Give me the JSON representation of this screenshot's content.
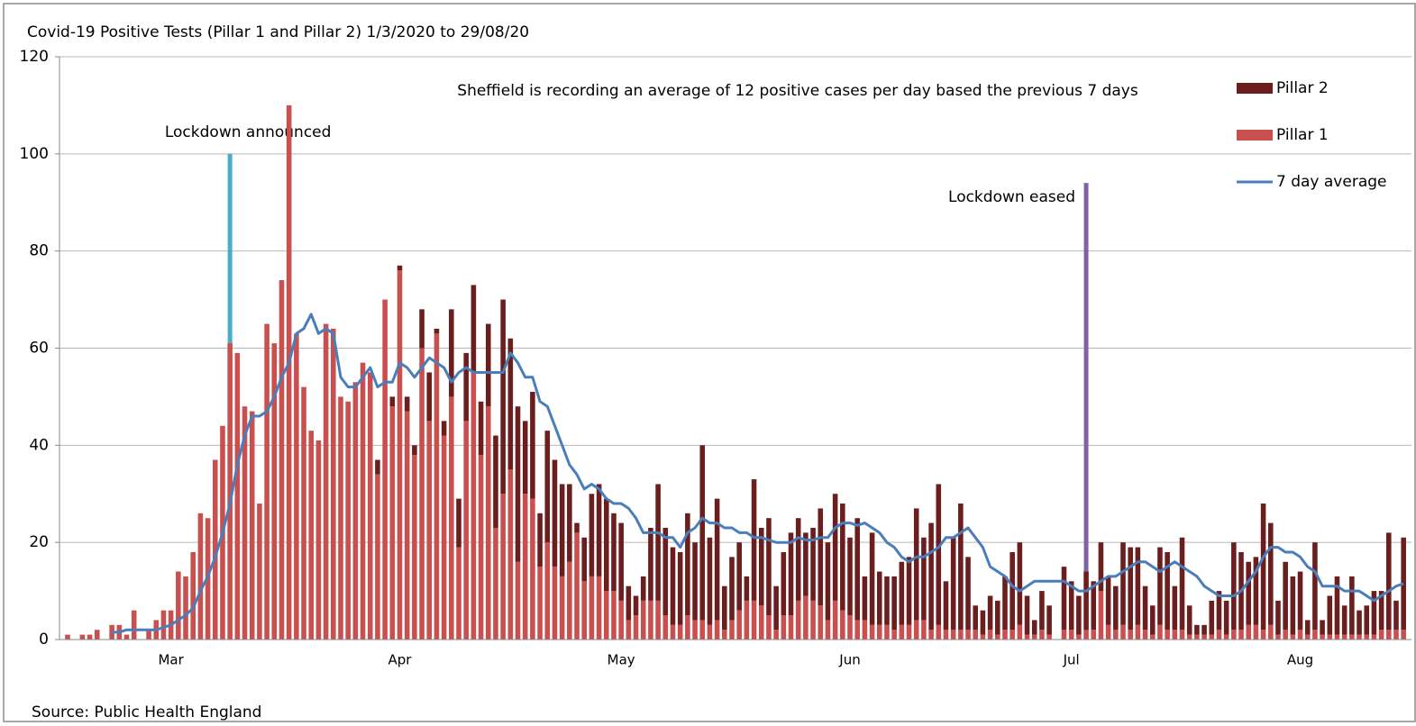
{
  "chart_data": {
    "type": "bar",
    "title": "Covid-19 Positive Tests (Pillar 1 and Pillar 2) 1/3/2020 to 29/08/20",
    "note": "Sheffield is recording an average of 12 positive cases per day based the previous 7 days",
    "source": "Source: Public Health England",
    "ylim": [
      0,
      120
    ],
    "yticks": [
      0,
      20,
      40,
      60,
      80,
      100,
      120
    ],
    "grid": true,
    "legend": "top-right",
    "categories": [
      null,
      null,
      null,
      null,
      null,
      null,
      null,
      null,
      null,
      null,
      null,
      null,
      null,
      null,
      "Mar",
      null,
      null,
      null,
      null,
      null,
      null,
      null,
      null,
      null,
      null,
      null,
      null,
      null,
      null,
      null,
      null,
      null,
      null,
      null,
      null,
      null,
      null,
      null,
      null,
      null,
      null,
      null,
      null,
      null,
      null,
      "Apr",
      null,
      null,
      null,
      null,
      null,
      null,
      null,
      null,
      null,
      null,
      null,
      null,
      null,
      null,
      null,
      null,
      null,
      null,
      null,
      null,
      null,
      null,
      null,
      null,
      null,
      null,
      null,
      null,
      null,
      "May",
      null,
      null,
      null,
      null,
      null,
      null,
      null,
      null,
      null,
      null,
      null,
      null,
      null,
      null,
      null,
      null,
      null,
      null,
      null,
      null,
      null,
      null,
      null,
      null,
      null,
      null,
      null,
      null,
      null,
      null,
      "Jun",
      null,
      null,
      null,
      null,
      null,
      null,
      null,
      null,
      null,
      null,
      null,
      null,
      null,
      null,
      null,
      null,
      null,
      null,
      null,
      null,
      null,
      null,
      null,
      null,
      null,
      null,
      null,
      null,
      null,
      "Jul",
      null,
      null,
      null,
      null,
      null,
      null,
      null,
      null,
      null,
      null,
      null,
      null,
      null,
      null,
      null,
      null,
      null,
      null,
      null,
      null,
      null,
      null,
      null,
      null,
      null,
      null,
      null,
      null,
      null,
      null,
      "Aug",
      null,
      null,
      null,
      null,
      null,
      null,
      null,
      null,
      null,
      null,
      null,
      null,
      null,
      null
    ],
    "series": [
      {
        "name": "Pillar 2",
        "type": "bar",
        "color": "#6b1e1e",
        "values": [
          0,
          0,
          0,
          0,
          0,
          0,
          0,
          0,
          0,
          0,
          0,
          0,
          0,
          0,
          0,
          0,
          0,
          0,
          0,
          0,
          0,
          0,
          0,
          0,
          0,
          0,
          0,
          0,
          0,
          0,
          0,
          0,
          0,
          0,
          0,
          0,
          0,
          0,
          0,
          0,
          0,
          0,
          3,
          0,
          2,
          1,
          3,
          2,
          8,
          10,
          1,
          3,
          18,
          10,
          14,
          18,
          11,
          17,
          19,
          40,
          27,
          32,
          15,
          22,
          11,
          23,
          22,
          19,
          16,
          2,
          9,
          17,
          19,
          19,
          16,
          16,
          7,
          4,
          5,
          15,
          24,
          18,
          16,
          15,
          21,
          16,
          36,
          18,
          25,
          9,
          13,
          14,
          5,
          25,
          16,
          20,
          9,
          13,
          17,
          17,
          13,
          15,
          20,
          16,
          22,
          22,
          16,
          21,
          9,
          19,
          11,
          10,
          11,
          13,
          14,
          23,
          17,
          22,
          29,
          10,
          19,
          26,
          15,
          5,
          5,
          7,
          7,
          11,
          16,
          17,
          8,
          3,
          8,
          6,
          0,
          13,
          10,
          8,
          12,
          10,
          10,
          10,
          9,
          17,
          17,
          16,
          9,
          6,
          16,
          16,
          9,
          19,
          6,
          2,
          2,
          7,
          8,
          7,
          18,
          16,
          13,
          14,
          26,
          21,
          7,
          14,
          12,
          12,
          3,
          18,
          3,
          8,
          12,
          6,
          12,
          5,
          6,
          9,
          8,
          20,
          6,
          19
        ]
      },
      {
        "name": "Pillar 1",
        "type": "bar",
        "color": "#c9504f",
        "values": [
          1,
          0,
          1,
          1,
          2,
          0,
          3,
          3,
          1,
          6,
          0,
          2,
          4,
          6,
          6,
          14,
          13,
          18,
          26,
          25,
          37,
          44,
          61,
          59,
          48,
          47,
          28,
          65,
          61,
          74,
          110,
          63,
          52,
          43,
          41,
          65,
          64,
          50,
          49,
          53,
          57,
          55,
          34,
          70,
          48,
          76,
          47,
          38,
          60,
          45,
          63,
          42,
          50,
          19,
          45,
          55,
          38,
          48,
          23,
          30,
          35,
          16,
          30,
          29,
          15,
          20,
          15,
          13,
          16,
          22,
          12,
          13,
          13,
          10,
          10,
          8,
          4,
          5,
          8,
          8,
          8,
          5,
          3,
          3,
          5,
          4,
          4,
          3,
          4,
          2,
          4,
          6,
          8,
          8,
          7,
          5,
          2,
          5,
          5,
          8,
          9,
          8,
          7,
          4,
          8,
          6,
          5,
          4,
          4,
          3,
          3,
          3,
          2,
          3,
          3,
          4,
          4,
          2,
          3,
          2,
          2,
          2,
          2,
          2,
          1,
          2,
          1,
          2,
          2,
          3,
          1,
          1,
          2,
          1,
          0,
          2,
          2,
          1,
          2,
          2,
          10,
          3,
          2,
          3,
          2,
          3,
          2,
          1,
          3,
          2,
          2,
          2,
          1,
          1,
          1,
          1,
          2,
          1,
          2,
          2,
          3,
          3,
          2,
          3,
          1,
          2,
          1,
          2,
          1,
          2,
          1,
          1,
          1,
          1,
          1,
          1,
          1,
          1,
          2,
          2,
          2,
          2
        ]
      },
      {
        "name": "7 day average",
        "type": "line",
        "color": "#4a7ebb",
        "values": [
          null,
          null,
          null,
          null,
          null,
          null,
          1.5,
          1.5,
          2,
          2,
          2,
          2,
          2,
          2.5,
          3,
          4,
          5,
          6.5,
          10,
          13,
          17,
          22,
          28,
          36,
          42,
          46,
          46,
          47,
          50,
          54,
          57,
          63,
          64,
          67,
          63,
          64,
          63,
          54,
          52,
          52,
          54,
          56,
          52,
          53,
          53,
          57,
          56,
          54,
          56,
          58,
          57,
          56,
          53,
          55,
          56,
          55,
          55,
          55,
          55,
          55,
          59,
          57,
          54,
          54,
          49,
          48,
          44,
          40,
          36,
          34,
          31,
          32,
          31,
          29,
          28,
          28,
          27,
          25,
          22,
          22,
          22,
          21,
          21,
          19,
          22,
          23,
          25,
          24,
          24,
          23,
          23,
          22,
          22,
          21,
          21,
          20.5,
          20,
          20,
          20,
          21,
          20.5,
          20.5,
          21,
          21,
          23,
          24,
          24,
          23.5,
          24,
          23,
          22,
          20,
          19,
          17,
          16,
          17,
          17,
          18,
          19,
          21,
          21,
          22,
          23,
          21,
          19,
          15,
          14,
          13,
          11,
          10,
          11,
          12,
          12,
          12,
          12,
          12,
          11,
          10,
          10,
          11,
          12,
          13,
          13,
          14,
          15,
          16,
          16,
          15,
          14,
          15,
          16,
          15,
          14,
          13,
          11,
          10,
          9,
          9,
          9,
          10,
          12,
          14,
          17,
          19,
          19,
          18,
          18,
          17,
          15,
          14,
          11,
          11,
          11,
          10,
          10,
          10,
          9,
          8,
          9,
          10,
          11,
          11.5
        ]
      }
    ],
    "annotations": [
      {
        "text": "Lockdown announced",
        "index": 22,
        "top": 100,
        "color": "#4bacc6"
      },
      {
        "text": "Lockdown eased",
        "index": 138,
        "top": 94,
        "color": "#8064a2"
      }
    ]
  }
}
